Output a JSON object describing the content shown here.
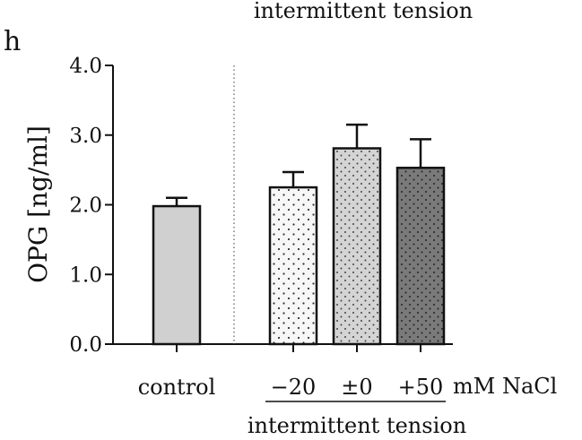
{
  "panel_label": "h",
  "top_caption": "intermittent tension",
  "bottom_caption": "intermittent tension",
  "unit_label": "mM NaCl",
  "chart_data": {
    "type": "bar",
    "ylabel": "OPG [ng/ml]",
    "ylim": [
      0,
      4
    ],
    "yticks": [
      "0.0",
      "1.0",
      "2.0",
      "3.0",
      "4.0"
    ],
    "grid": false,
    "categories": [
      "control",
      "−20",
      "±0",
      "+50"
    ],
    "values": [
      1.98,
      2.25,
      2.81,
      2.53
    ],
    "errors": [
      0.12,
      0.22,
      0.34,
      0.41
    ],
    "colors": [
      "#d0d0d0",
      "#f5f5f5",
      "#d8d8d8",
      "#7a7a7a"
    ],
    "patterns": [
      "solid",
      "dots-sparse",
      "dots-dense",
      "dots-dark"
    ]
  }
}
